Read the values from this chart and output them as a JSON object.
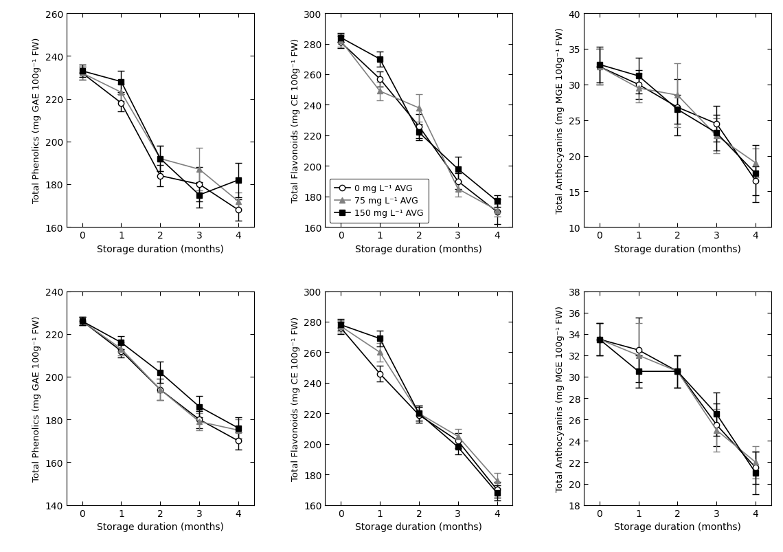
{
  "x": [
    0,
    1,
    2,
    3,
    4
  ],
  "xlabel": "Storage duration (months)",
  "upper": {
    "phenolics": {
      "ylabel": "Total Phenolics (mg GAE 100g⁻¹ FW)",
      "ylim": [
        160,
        260
      ],
      "yticks": [
        160,
        180,
        200,
        220,
        240,
        260
      ],
      "series": {
        "ctrl": {
          "y": [
            232,
            218,
            184,
            180,
            168
          ],
          "yerr": [
            3,
            4,
            5,
            8,
            5
          ]
        },
        "avg75": {
          "y": [
            232,
            223,
            192,
            187,
            172
          ],
          "yerr": [
            3,
            4,
            6,
            10,
            4
          ]
        },
        "avg150": {
          "y": [
            233,
            228,
            192,
            175,
            182
          ],
          "yerr": [
            3,
            5,
            6,
            6,
            8
          ]
        }
      }
    },
    "flavonoids": {
      "ylabel": "Total Flavonoids (mg CE 100g⁻¹ FW)",
      "ylim": [
        160,
        300
      ],
      "yticks": [
        160,
        180,
        200,
        220,
        240,
        260,
        280,
        300
      ],
      "legend_loc": "lower left",
      "series": {
        "ctrl": {
          "y": [
            281,
            257,
            226,
            190,
            170
          ],
          "yerr": [
            4,
            5,
            8,
            5,
            8
          ]
        },
        "avg75": {
          "y": [
            282,
            249,
            238,
            185,
            171
          ],
          "yerr": [
            4,
            6,
            9,
            5,
            4
          ]
        },
        "avg150": {
          "y": [
            284,
            270,
            222,
            198,
            177
          ],
          "yerr": [
            3,
            5,
            5,
            8,
            4
          ]
        }
      }
    },
    "anthocyanins": {
      "ylabel": "Total Anthocyanins (mg MGE 100g⁻¹ FW)",
      "ylim": [
        10,
        40
      ],
      "yticks": [
        10,
        15,
        20,
        25,
        30,
        35,
        40
      ],
      "series": {
        "ctrl": {
          "y": [
            32.5,
            30.0,
            26.8,
            24.5,
            16.5
          ],
          "yerr": [
            2.5,
            2.0,
            4.0,
            2.5,
            2.0
          ]
        },
        "avg75": {
          "y": [
            32.5,
            29.5,
            28.5,
            22.8,
            19.0
          ],
          "yerr": [
            2.5,
            2.0,
            4.5,
            2.5,
            2.0
          ]
        },
        "avg150": {
          "y": [
            32.8,
            31.2,
            26.5,
            23.2,
            17.5
          ],
          "yerr": [
            2.5,
            2.5,
            2.0,
            2.5,
            4.0
          ]
        }
      }
    }
  },
  "lower": {
    "phenolics": {
      "ylabel": "Total Phenolics (mg GAE 100g⁻¹ FW)",
      "ylim": [
        140,
        240
      ],
      "yticks": [
        140,
        160,
        180,
        200,
        220,
        240
      ],
      "series": {
        "ctrl": {
          "y": [
            226,
            212,
            194,
            180,
            170
          ],
          "yerr": [
            2,
            3,
            5,
            4,
            4
          ]
        },
        "avg75": {
          "y": [
            226,
            213,
            194,
            179,
            175
          ],
          "yerr": [
            2,
            3,
            5,
            4,
            5
          ]
        },
        "avg150": {
          "y": [
            226,
            216,
            202,
            186,
            176
          ],
          "yerr": [
            2,
            3,
            5,
            5,
            5
          ]
        }
      }
    },
    "flavonoids": {
      "ylabel": "Total Flavonoids (mg CE 100g⁻¹ FW)",
      "ylim": [
        160,
        300
      ],
      "yticks": [
        160,
        180,
        200,
        220,
        240,
        260,
        280,
        300
      ],
      "series": {
        "ctrl": {
          "y": [
            276,
            246,
            219,
            202,
            170
          ],
          "yerr": [
            4,
            5,
            5,
            5,
            5
          ]
        },
        "avg75": {
          "y": [
            277,
            260,
            220,
            205,
            176
          ],
          "yerr": [
            4,
            6,
            5,
            5,
            5
          ]
        },
        "avg150": {
          "y": [
            278,
            269,
            220,
            198,
            168
          ],
          "yerr": [
            4,
            5,
            5,
            5,
            5
          ]
        }
      }
    },
    "anthocyanins": {
      "ylabel": "Total Anthocyanins (mg MGE 100g⁻¹ FW)",
      "ylim": [
        18,
        38
      ],
      "yticks": [
        18,
        20,
        22,
        24,
        26,
        28,
        30,
        32,
        34,
        36,
        38
      ],
      "series": {
        "ctrl": {
          "y": [
            33.5,
            32.5,
            30.5,
            25.5,
            21.5
          ],
          "yerr": [
            1.5,
            3.0,
            1.5,
            2.0,
            1.5
          ]
        },
        "avg75": {
          "y": [
            33.5,
            32.0,
            30.5,
            25.0,
            22.0
          ],
          "yerr": [
            1.5,
            3.0,
            1.5,
            2.0,
            1.5
          ]
        },
        "avg150": {
          "y": [
            33.5,
            30.5,
            30.5,
            26.5,
            21.0
          ],
          "yerr": [
            1.5,
            1.5,
            1.5,
            2.0,
            2.0
          ]
        }
      }
    }
  },
  "legend_labels": [
    "0 mg L⁻¹ AVG",
    "75 mg L⁻¹ AVG",
    "150 mg L⁻¹ AVG"
  ],
  "series_styles": {
    "ctrl": {
      "color": "black",
      "marker": "o",
      "mfc": "white",
      "linestyle": "-"
    },
    "avg75": {
      "color": "#808080",
      "marker": "^",
      "mfc": "#808080",
      "linestyle": "-"
    },
    "avg150": {
      "color": "black",
      "marker": "s",
      "mfc": "black",
      "linestyle": "-"
    }
  }
}
